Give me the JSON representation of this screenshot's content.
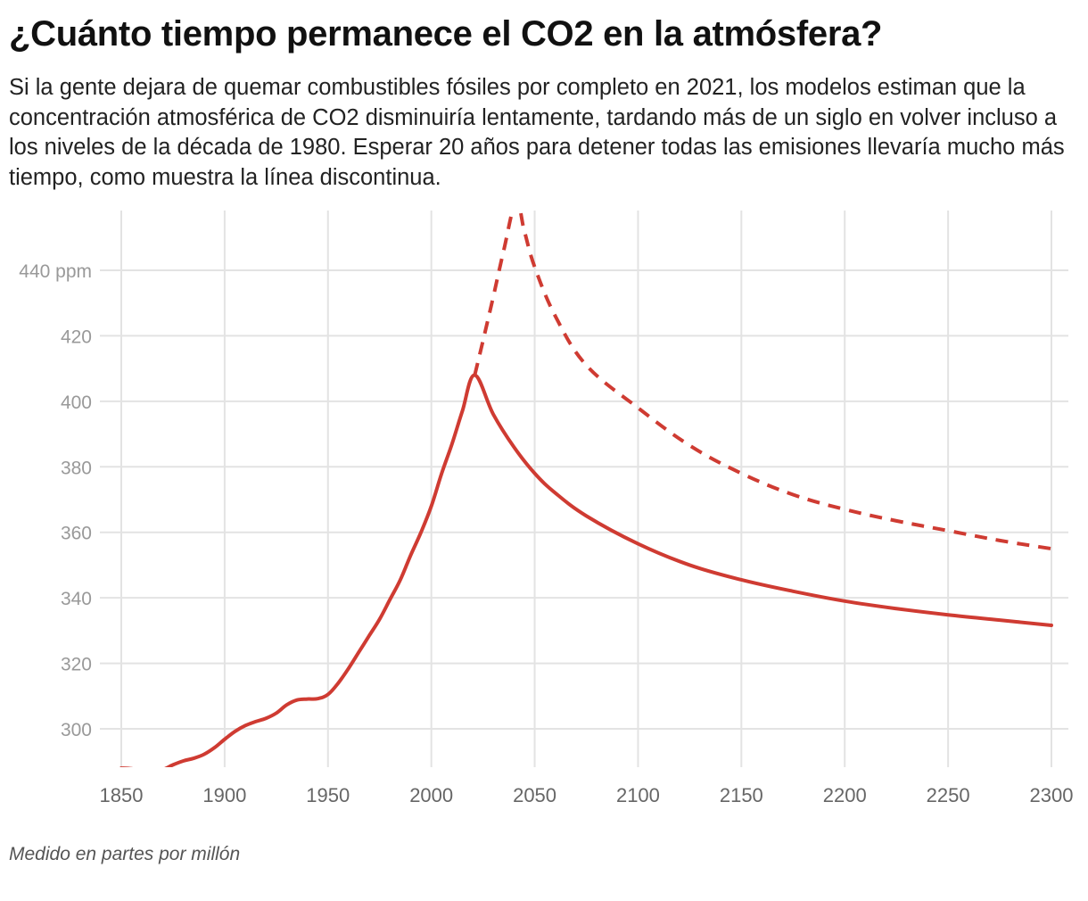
{
  "header": {
    "title": "¿Cuánto tiempo permanece el CO2 en la atmósfera?",
    "subtitle": "Si la gente dejara de quemar combustibles fósiles por completo en 2021, los modelos estiman que la concentración atmosférica de CO2 disminuiría lentamente, tardando más de un siglo en volver incluso a los niveles de la década de 1980. Esperar 20 años para detener todas las emisiones llevaría mucho más tiempo, como muestra la línea discontinua."
  },
  "footer": {
    "note": "Medido en partes por millón"
  },
  "chart_data": {
    "type": "line",
    "xlim": [
      1850,
      2300
    ],
    "ylim": [
      287,
      460
    ],
    "x_ticks": [
      1850,
      1900,
      1950,
      2000,
      2050,
      2100,
      2150,
      2200,
      2250,
      2300
    ],
    "y_ticks": [
      300,
      320,
      340,
      360,
      380,
      400,
      420,
      440
    ],
    "y_tick_labels": [
      "300",
      "320",
      "340",
      "360",
      "380",
      "400",
      "420",
      "440 ppm"
    ],
    "grid": true,
    "series": [
      {
        "style": "solid",
        "color": "#cf3b32",
        "x": [
          1850,
          1855,
          1860,
          1865,
          1870,
          1875,
          1880,
          1885,
          1890,
          1895,
          1900,
          1905,
          1910,
          1915,
          1920,
          1925,
          1930,
          1935,
          1940,
          1945,
          1950,
          1955,
          1960,
          1965,
          1970,
          1975,
          1980,
          1985,
          1990,
          1995,
          2000,
          2005,
          2010,
          2015,
          2021,
          2030,
          2040,
          2050,
          2060,
          2075,
          2100,
          2125,
          2150,
          2175,
          2200,
          2225,
          2250,
          2275,
          2300
        ],
        "y": [
          288,
          287.8,
          287.2,
          286.8,
          287.5,
          289,
          290.2,
          291,
          292.2,
          294.2,
          296.8,
          299.2,
          301,
          302.2,
          303.2,
          304.8,
          307.3,
          308.8,
          309.1,
          309.2,
          310.5,
          314,
          318.5,
          323.5,
          328.5,
          333.5,
          339.5,
          345.5,
          353,
          360,
          368,
          378,
          387,
          397,
          408,
          396,
          386,
          378,
          372,
          365,
          356.5,
          350,
          345.5,
          342,
          339,
          336.7,
          334.8,
          333.2,
          331.6
        ]
      },
      {
        "style": "dashed",
        "color": "#cf3b32",
        "x": [
          2021,
          2025,
          2030,
          2035,
          2041,
          2045,
          2050,
          2060,
          2075,
          2100,
          2125,
          2150,
          2175,
          2200,
          2225,
          2250,
          2275,
          2300
        ],
        "y": [
          408,
          418.5,
          432,
          446,
          461,
          452,
          441,
          426,
          411,
          398,
          386.5,
          378,
          371.5,
          367,
          363.5,
          360.5,
          357.5,
          355
        ]
      }
    ]
  }
}
